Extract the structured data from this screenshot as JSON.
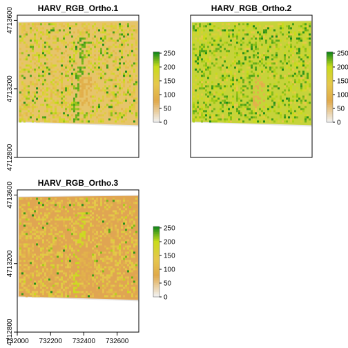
{
  "chart_data": [
    {
      "type": "heatmap",
      "title": "HARV_RGB_Ortho.1",
      "xlim": [
        732000,
        732730
      ],
      "ylim": [
        4712800,
        4713630
      ],
      "xticks": [],
      "yticks": [
        4712800,
        4713200,
        4713600
      ],
      "legend_ticks": [
        0,
        50,
        100,
        150,
        200,
        250
      ],
      "legend_range": [
        0,
        255
      ],
      "palette": {
        "low": "#f2f2f2",
        "low_mid": "#e0a94b",
        "mid": "#e6c84c",
        "high": "#c8dc1a",
        "top": "#1a8a1a"
      },
      "mean_value": 150,
      "greenness": 0.25,
      "bg": "#e6c46a"
    },
    {
      "type": "heatmap",
      "title": "HARV_RGB_Ortho.2",
      "xlim": [
        732000,
        732730
      ],
      "ylim": [
        4712800,
        4713630
      ],
      "xticks": [],
      "yticks": [],
      "legend_ticks": [
        0,
        50,
        100,
        150,
        200,
        250
      ],
      "legend_range": [
        0,
        255
      ],
      "palette": {
        "low": "#f2f2f2",
        "low_mid": "#e0a94b",
        "mid": "#e6c84c",
        "high": "#c8dc1a",
        "top": "#1a8a1a"
      },
      "mean_value": 175,
      "greenness": 0.55,
      "bg": "#c6d33a"
    },
    {
      "type": "heatmap",
      "title": "HARV_RGB_Ortho.3",
      "xlim": [
        732000,
        732730
      ],
      "ylim": [
        4712800,
        4713630
      ],
      "xticks": [
        732000,
        732200,
        732400,
        732600
      ],
      "yticks": [
        4712800,
        4713200,
        4713600
      ],
      "legend_ticks": [
        0,
        50,
        100,
        150,
        200,
        250
      ],
      "legend_range": [
        0,
        255
      ],
      "palette": {
        "low": "#f2f2f2",
        "low_mid": "#e0a94b",
        "mid": "#e6c84c",
        "high": "#c8dc1a",
        "top": "#1a8a1a"
      },
      "mean_value": 125,
      "greenness": 0.08,
      "bg": "#e0a552"
    }
  ]
}
